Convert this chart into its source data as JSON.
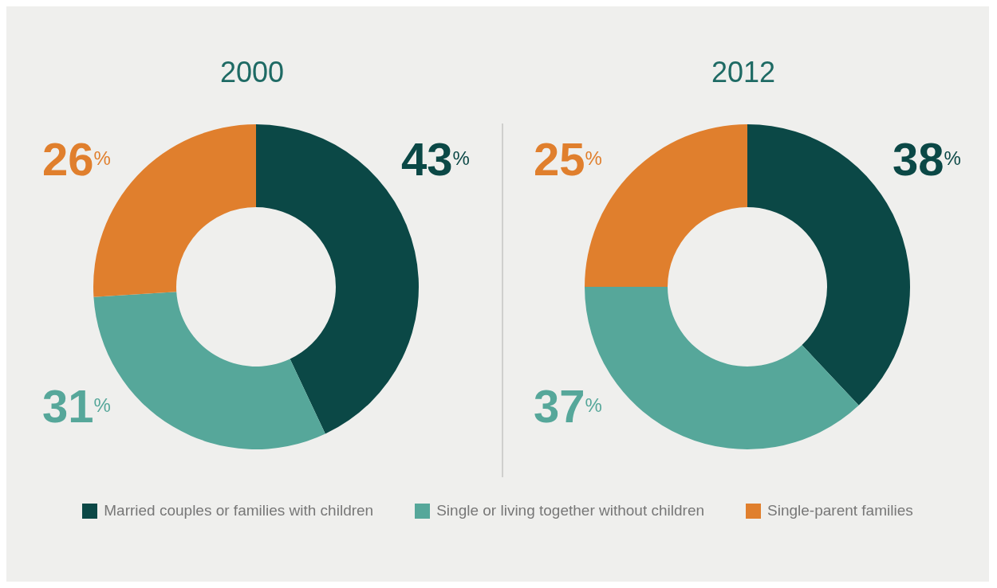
{
  "chart_data": [
    {
      "type": "donut",
      "title": "2000",
      "categories": [
        "Married couples or families with children",
        "Single or living together without children",
        "Single-parent families"
      ],
      "values": [
        43,
        31,
        26
      ],
      "colors": [
        "#0b4846",
        "#56a79a",
        "#e07f2d"
      ],
      "value_labels": [
        "43$^{%}$",
        "31$^{%}$",
        "26$^{%}$"
      ],
      "legend": "bottom"
    },
    {
      "type": "donut",
      "title": "2012",
      "categories": [
        null,
        null,
        null
      ],
      "values": [
        38,
        37,
        25
      ],
      "colors": [
        "#0b4846",
        "#56a79a",
        "#e07f2d"
      ],
      "value_labels": [
        "38$^{%}$",
        "37$^{%}$",
        "25$^{%}$"
      ]
    }
  ]
}
